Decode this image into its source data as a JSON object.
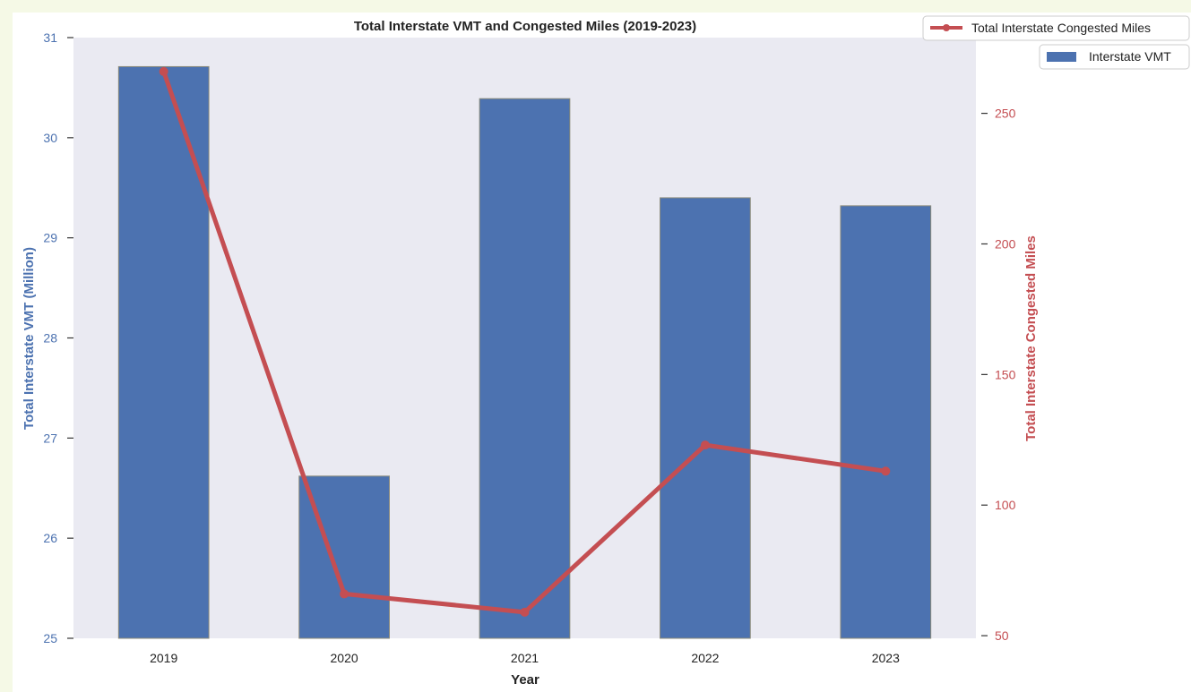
{
  "chart_data": {
    "type": "bar",
    "title": "Total Interstate VMT and Congested Miles (2019-2023)",
    "xlabel": "Year",
    "categories": [
      "2019",
      "2020",
      "2021",
      "2022",
      "2023"
    ],
    "series": [
      {
        "name": "Interstate VMT",
        "type": "bar",
        "axis": "left",
        "color": "#4c72b0",
        "values": [
          30.71,
          26.62,
          30.39,
          29.4,
          29.32
        ]
      },
      {
        "name": "Total Interstate Congested Miles",
        "type": "line",
        "axis": "right",
        "color": "#c44e52",
        "values": [
          266,
          66,
          59,
          123,
          113
        ]
      }
    ],
    "y_left": {
      "label": "Total Interstate VMT (Million)",
      "range": [
        25,
        31
      ],
      "ticks": [
        25,
        26,
        27,
        28,
        29,
        30,
        31
      ],
      "color": "#4c72b0"
    },
    "y_right": {
      "label": "Total Interstate Congested Miles",
      "range": [
        49,
        279
      ],
      "ticks": [
        50,
        100,
        150,
        200,
        250
      ],
      "color": "#c44e52"
    },
    "grid": false,
    "legend_placement": "top-right",
    "plot_background": "#eaeaf2"
  }
}
